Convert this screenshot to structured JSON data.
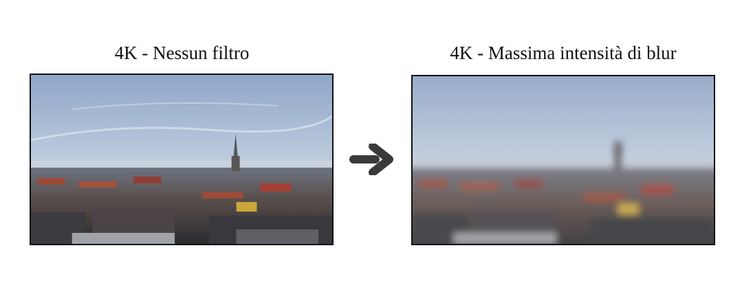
{
  "captions": {
    "left": "4K - Nessun filtro",
    "right": "4K - Massima intensità di blur"
  },
  "images": {
    "left": {
      "subject": "city-skyline-photo",
      "filter": "none"
    },
    "right": {
      "subject": "city-skyline-photo",
      "filter": "blur-max"
    }
  },
  "icons": {
    "arrow": "arrow-right-icon"
  },
  "colors": {
    "arrow": "#3a3a3a",
    "frame_border": "#111111",
    "sky_top": "#8ea6c9",
    "sky_bottom": "#d8e0ea"
  }
}
